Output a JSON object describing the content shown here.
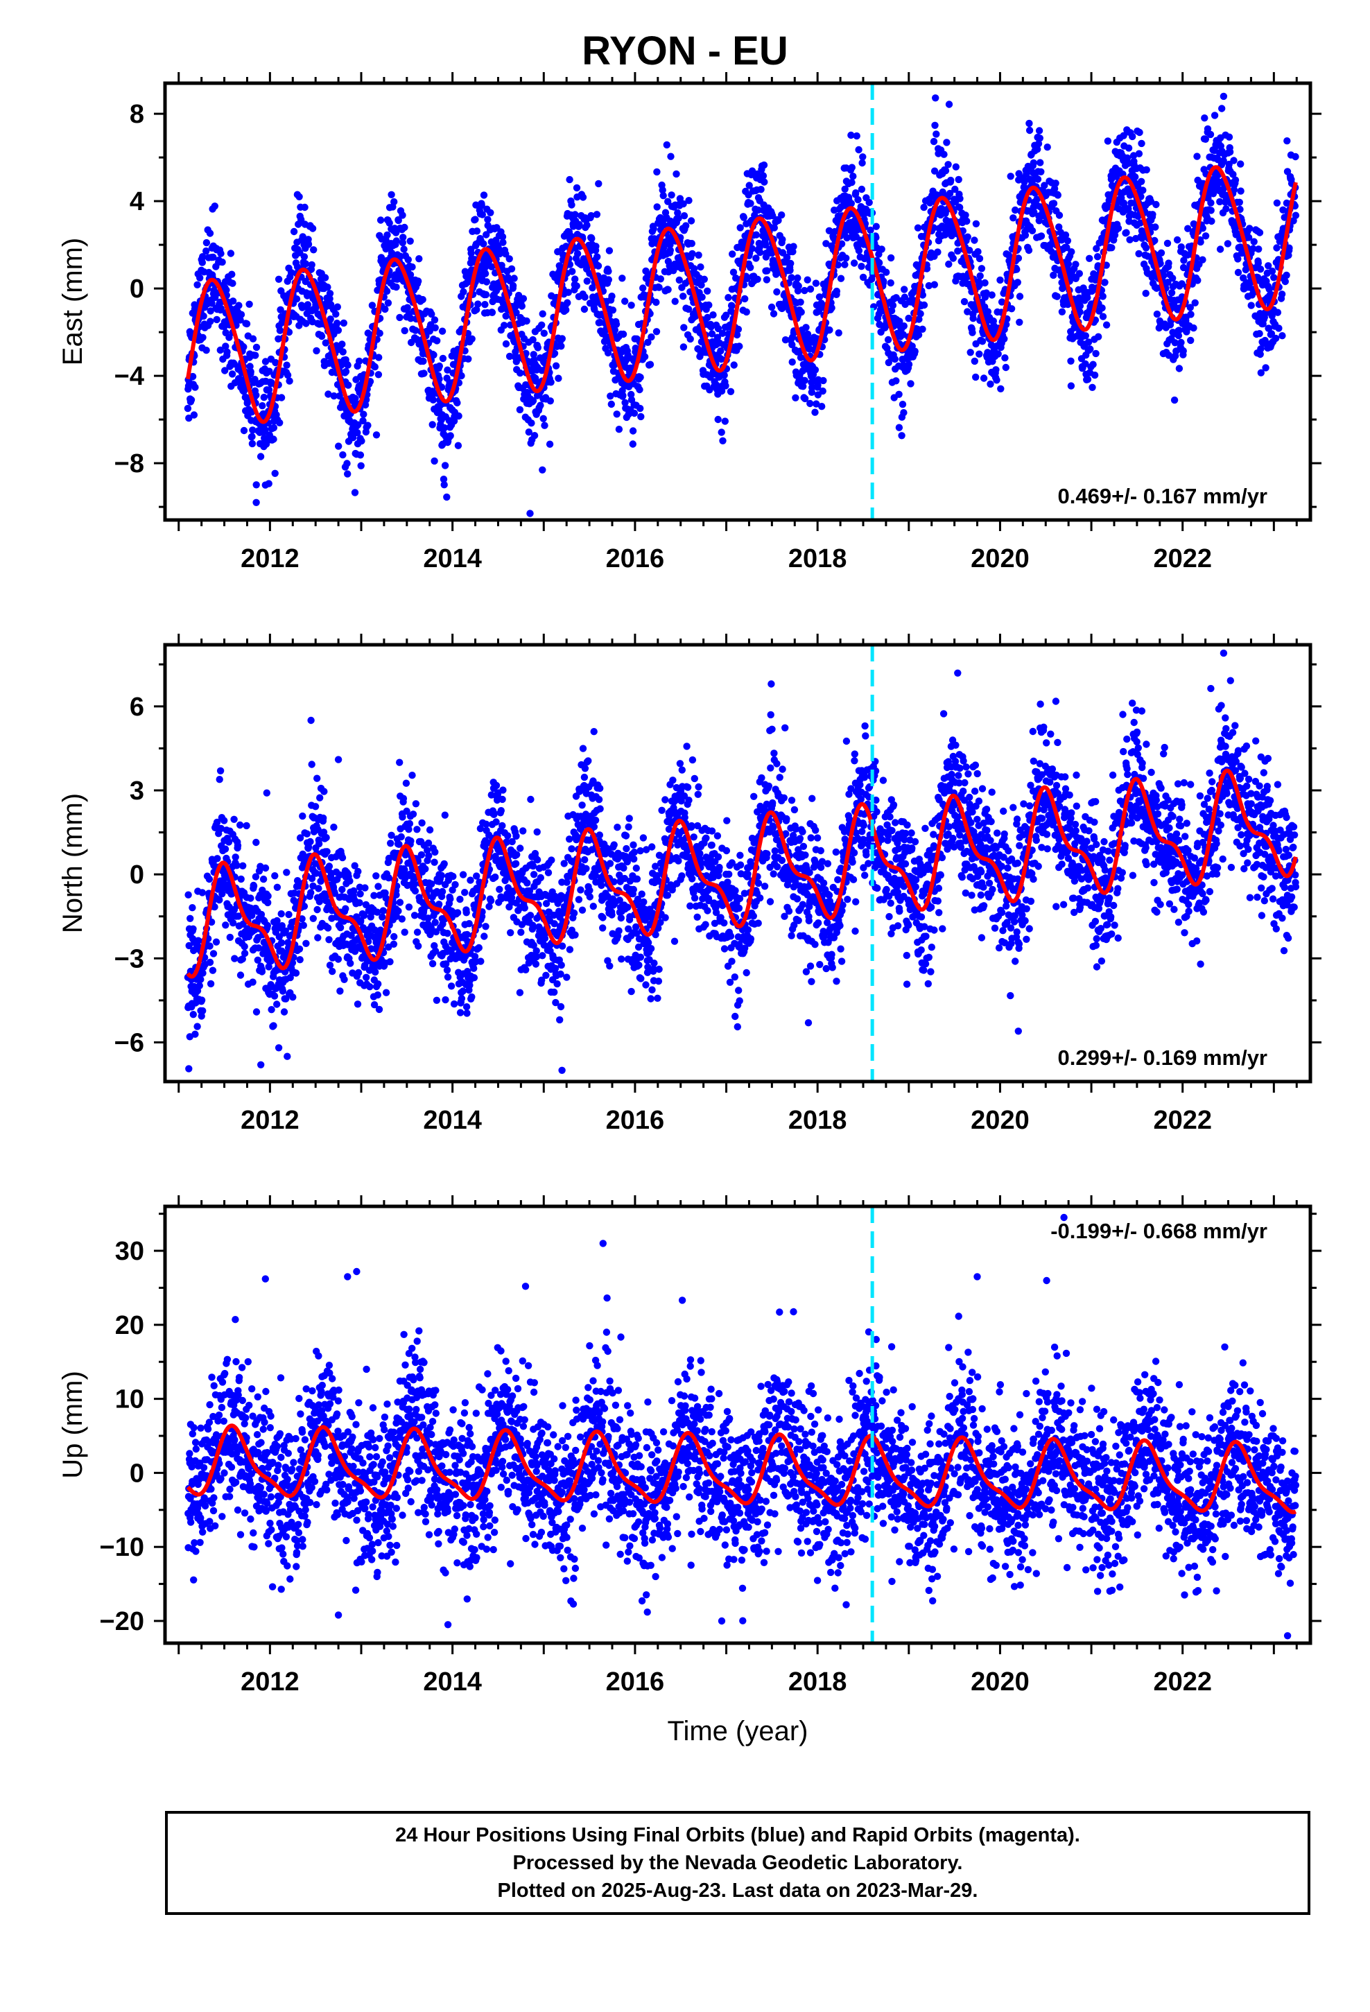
{
  "title": "RYON - EU",
  "colors": {
    "final_orbit_points": "#0000ff",
    "model_fit": "#ff0000",
    "equipment_change": "#00e5ff",
    "frame": "#000000"
  },
  "chart_data": [
    {
      "type": "scatter",
      "name": "east",
      "ylabel": "East (mm)",
      "xlim": [
        2010.85,
        2023.4
      ],
      "ylim": [
        -10.6,
        9.4
      ],
      "yticks": [
        -8,
        -4,
        0,
        4,
        8
      ],
      "xticks": [
        2012,
        2014,
        2016,
        2018,
        2020,
        2022
      ],
      "xticklabels": [
        "2012",
        "2014",
        "2016",
        "2018",
        "2020",
        "2022"
      ],
      "grid": false,
      "rate_annotation": "0.469+/- 0.167 mm/yr",
      "rate_position": "bottom-right",
      "equipment_change_year": 2018.6,
      "data_start": 2011.1,
      "data_end": 2023.24,
      "fit": {
        "offset": -3.0,
        "offset_after_change": 0,
        "trend": 0.469,
        "annual_amplitude": 3.3,
        "annual_peak": 2011.4,
        "semiannual_amplitude": 0.4,
        "semiannual_peak": 2011.25
      },
      "scatter_sigma": 1.3,
      "outliers": [
        [
          2011.85,
          -9.8
        ],
        [
          2014.85,
          -10.3
        ],
        [
          2011.95,
          -9.0
        ],
        [
          2022.45,
          8.8
        ],
        [
          2012.3,
          4.3
        ],
        [
          2015.6,
          4.8
        ]
      ]
    },
    {
      "type": "scatter",
      "name": "north",
      "ylabel": "North (mm)",
      "xlim": [
        2010.85,
        2023.4
      ],
      "ylim": [
        -7.4,
        8.2
      ],
      "yticks": [
        -6,
        -3,
        0,
        3,
        6
      ],
      "xticks": [
        2012,
        2014,
        2016,
        2018,
        2020,
        2022
      ],
      "xticklabels": [
        "2012",
        "2014",
        "2016",
        "2018",
        "2020",
        "2022"
      ],
      "grid": false,
      "rate_annotation": "0.299+/- 0.169 mm/yr",
      "rate_position": "bottom-right",
      "equipment_change_year": 2018.6,
      "data_start": 2011.1,
      "data_end": 2023.24,
      "fit": {
        "offset": -1.8,
        "offset_after_change": 0,
        "trend": 0.299,
        "annual_amplitude": 1.6,
        "annual_peak": 2011.55,
        "semiannual_amplitude": 0.7,
        "semiannual_peak": 2011.45
      },
      "scatter_sigma": 1.2,
      "outliers": [
        [
          2012.45,
          5.5
        ],
        [
          2012.75,
          4.1
        ],
        [
          2015.55,
          5.1
        ],
        [
          2015.2,
          -7.0
        ],
        [
          2020.2,
          -5.6
        ],
        [
          2022.45,
          7.9
        ],
        [
          2011.9,
          -6.8
        ],
        [
          2017.9,
          -5.3
        ]
      ]
    },
    {
      "type": "scatter",
      "name": "up",
      "ylabel": "Up (mm)",
      "xlabel": "Time (year)",
      "xlim": [
        2010.85,
        2023.4
      ],
      "ylim": [
        -23.0,
        36.0
      ],
      "yticks": [
        -20,
        -10,
        0,
        10,
        20,
        30
      ],
      "xticks": [
        2012,
        2014,
        2016,
        2018,
        2020,
        2022
      ],
      "xticklabels": [
        "2012",
        "2014",
        "2016",
        "2018",
        "2020",
        "2022"
      ],
      "grid": false,
      "rate_annotation": "-0.199+/- 0.668 mm/yr",
      "rate_position": "top-right",
      "equipment_change_year": 2018.6,
      "data_start": 2011.1,
      "data_end": 2023.24,
      "fit": {
        "offset": 1.2,
        "offset_after_change": 0,
        "trend": -0.199,
        "annual_amplitude": 4.2,
        "annual_peak": 2011.62,
        "semiannual_amplitude": 1.3,
        "semiannual_peak": 2011.55
      },
      "scatter_sigma": 5.2,
      "outliers": [
        [
          2015.65,
          31.0
        ],
        [
          2012.95,
          27.2
        ],
        [
          2012.85,
          26.5
        ],
        [
          2011.95,
          26.2
        ],
        [
          2020.7,
          34.5
        ],
        [
          2019.75,
          26.5
        ],
        [
          2013.95,
          -20.5
        ],
        [
          2023.15,
          -22.0
        ],
        [
          2014.8,
          25.2
        ],
        [
          2016.95,
          -20.0
        ],
        [
          2012.75,
          -19.2
        ]
      ]
    }
  ],
  "caption": {
    "line1": "24 Hour Positions Using Final Orbits (blue) and Rapid Orbits (magenta).",
    "line2": "Processed by the Nevada Geodetic Laboratory.",
    "line3": "Plotted on 2025-Aug-23. Last data on 2023-Mar-29."
  }
}
